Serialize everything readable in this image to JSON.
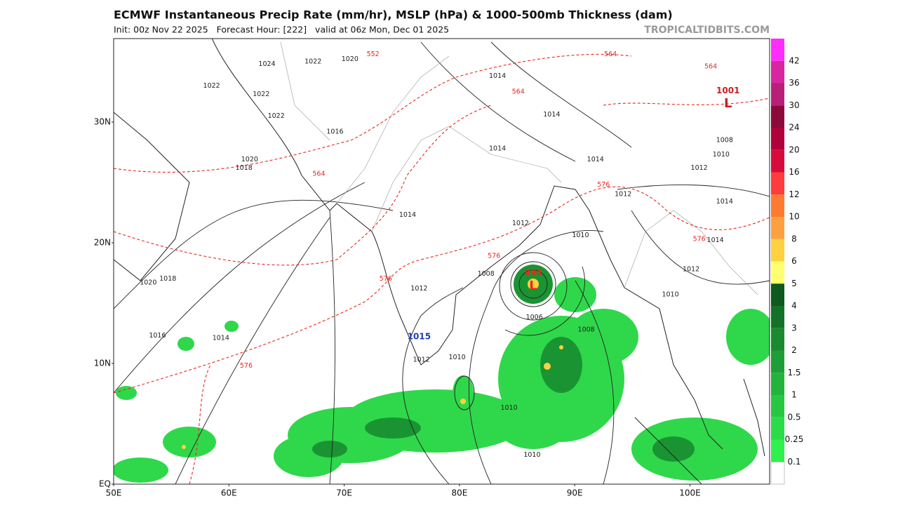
{
  "header": {
    "title": "ECMWF Instantaneous Precip Rate (mm/hr), MSLP (hPa) & 1000-500mb Thickness (dam)",
    "subtitle": "Init: 00z Nov 22 2025   Forecast Hour: [222]   valid at 06z Mon, Dec 01 2025",
    "watermark": "TROPICALTIDBITS.COM"
  },
  "map": {
    "lat_labels": [
      "30N",
      "20N",
      "10N",
      "EQ"
    ],
    "lon_labels": [
      "50E",
      "60E",
      "70E",
      "80E",
      "90E",
      "100E"
    ],
    "isobar_labels": [
      {
        "text": "1014",
        "lon": 75.5,
        "lat": 22.3
      },
      {
        "text": "1012",
        "lon": 76.5,
        "lat": 16.2
      },
      {
        "text": "1012",
        "lon": 85.3,
        "lat": 21.6
      },
      {
        "text": "1008",
        "lon": 82.3,
        "lat": 17.4
      },
      {
        "text": "1010",
        "lon": 90.5,
        "lat": 20.6
      },
      {
        "text": "1006",
        "lon": 86.5,
        "lat": 13.8
      },
      {
        "text": "1008",
        "lon": 91,
        "lat": 12.8
      },
      {
        "text": "1010",
        "lon": 79.8,
        "lat": 10.5
      },
      {
        "text": "1010",
        "lon": 84.3,
        "lat": 6.3
      },
      {
        "text": "1010",
        "lon": 86.3,
        "lat": 2.4
      },
      {
        "text": "1014",
        "lon": 59.3,
        "lat": 12.1
      },
      {
        "text": "1016",
        "lon": 53.8,
        "lat": 12.3
      },
      {
        "text": "1018",
        "lon": 54.7,
        "lat": 17
      },
      {
        "text": "1020",
        "lon": 53,
        "lat": 16.7
      },
      {
        "text": "1018",
        "lon": 61.3,
        "lat": 26.2
      },
      {
        "text": "1020",
        "lon": 61.8,
        "lat": 26.9
      },
      {
        "text": "1016",
        "lon": 69.2,
        "lat": 29.2
      },
      {
        "text": "1022",
        "lon": 58.5,
        "lat": 33
      },
      {
        "text": "1022",
        "lon": 62.8,
        "lat": 32.3
      },
      {
        "text": "1022",
        "lon": 64.1,
        "lat": 30.5
      },
      {
        "text": "1024",
        "lon": 63.3,
        "lat": 34.8
      },
      {
        "text": "1022",
        "lon": 67.3,
        "lat": 35
      },
      {
        "text": "1020",
        "lon": 70.5,
        "lat": 35.2
      },
      {
        "text": "1014",
        "lon": 83.3,
        "lat": 33.8
      },
      {
        "text": "1014",
        "lon": 88,
        "lat": 30.6
      },
      {
        "text": "1014",
        "lon": 83.3,
        "lat": 27.8
      },
      {
        "text": "1014",
        "lon": 91.8,
        "lat": 26.9
      },
      {
        "text": "1012",
        "lon": 100.8,
        "lat": 26.2
      },
      {
        "text": "1014",
        "lon": 103,
        "lat": 23.4
      },
      {
        "text": "1014",
        "lon": 102.2,
        "lat": 20.2
      },
      {
        "text": "1012",
        "lon": 100.1,
        "lat": 17.8
      },
      {
        "text": "1010",
        "lon": 98.3,
        "lat": 15.7
      },
      {
        "text": "1012",
        "lon": 94.2,
        "lat": 24
      },
      {
        "text": "1008",
        "lon": 103,
        "lat": 28.5
      },
      {
        "text": "1010",
        "lon": 102.7,
        "lat": 27.3
      },
      {
        "text": "1012",
        "lon": 76.7,
        "lat": 10.3
      }
    ],
    "thickness_labels": [
      {
        "text": "552",
        "lon": 72.5,
        "lat": 35.6
      },
      {
        "text": "564",
        "lon": 67.8,
        "lat": 25.7
      },
      {
        "text": "576",
        "lon": 73.6,
        "lat": 17
      },
      {
        "text": "576",
        "lon": 61.5,
        "lat": 9.8
      },
      {
        "text": "576",
        "lon": 83,
        "lat": 18.9
      },
      {
        "text": "576",
        "lon": 92.5,
        "lat": 24.8
      },
      {
        "text": "576",
        "lon": 100.8,
        "lat": 20.3
      },
      {
        "text": "564",
        "lon": 93.1,
        "lat": 35.6
      },
      {
        "text": "564",
        "lon": 101.8,
        "lat": 34.6
      },
      {
        "text": "564",
        "lon": 85.1,
        "lat": 32.5
      }
    ],
    "centers": [
      {
        "text": "L",
        "lon": 86.4,
        "lat": 16.4,
        "color": "#e8281e"
      },
      {
        "text": "994",
        "lon": 86.4,
        "lat": 17.5,
        "color": "#e8281e"
      },
      {
        "text": "1015",
        "lon": 76.5,
        "lat": 12.2,
        "color": "#1f3fb0"
      },
      {
        "text": "1001",
        "lon": 103.3,
        "lat": 32.6,
        "color": "#c81e1e"
      },
      {
        "text": "L",
        "lon": 103.3,
        "lat": 31.5,
        "color": "#c81e1e"
      }
    ]
  },
  "colorbar": {
    "levels": [
      42,
      36,
      30,
      24,
      20,
      16,
      12,
      10,
      8,
      6,
      5,
      4,
      3,
      2,
      1.5,
      1,
      0.5,
      0.25,
      0.1
    ],
    "colors": [
      "#ff2bff",
      "#d8249f",
      "#b91f78",
      "#8c0a3a",
      "#b0023a",
      "#d80a3c",
      "#ff3b3b",
      "#ff7a30",
      "#ffa040",
      "#ffd040",
      "#ffff70",
      "#0e5a1e",
      "#137228",
      "#198a30",
      "#1e9e36",
      "#22b43c",
      "#26c842",
      "#2bdc48",
      "#30f04e",
      "#ffffff"
    ]
  }
}
